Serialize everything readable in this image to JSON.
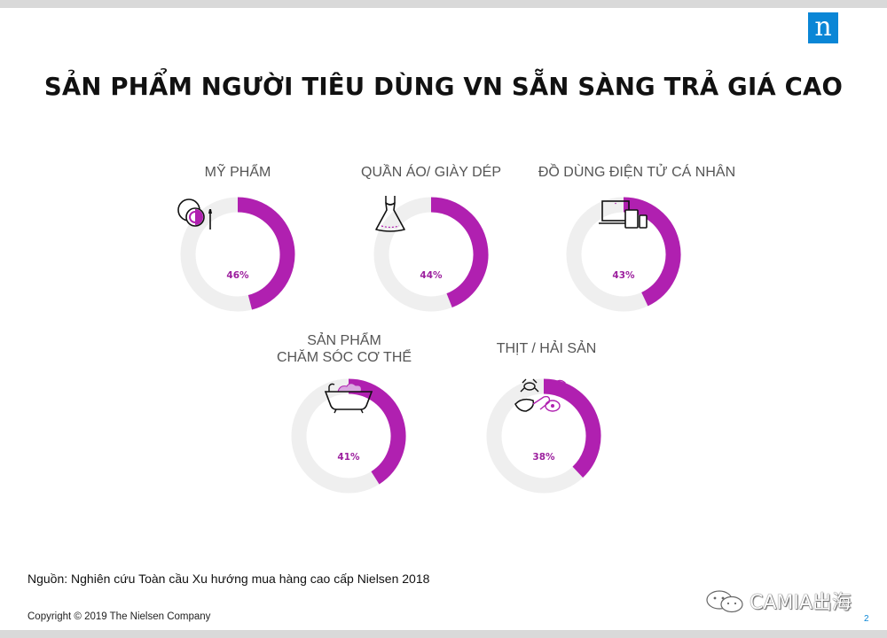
{
  "slide": {
    "title": "SẢN PHẨM NGƯỜI TIÊU DÙNG VN SẴN SÀNG TRẢ GIÁ CAO",
    "logo_letter": "n",
    "source": "Nguồn: Nghiên cứu Toàn cầu Xu hướng mua hàng cao cấp Nielsen 2018",
    "copyright": "Copyright © 2019  The Nielsen Company",
    "page_number": "2",
    "watermark": "CAMIA出海"
  },
  "colors": {
    "accent": "#b020b0",
    "track": "#efefef",
    "logo": "#0a86d6"
  },
  "chart_data": {
    "type": "pie",
    "title": "SẢN PHẨM NGƯỜI TIÊU DÙNG VN SẴN SÀNG TRẢ GIÁ CAO",
    "categories": [
      "MỸ PHẨM",
      "QUẦN ÁO/ GIÀY DÉP",
      "ĐỒ DÙNG ĐIỆN TỬ CÁ NHÂN",
      "SẢN PHẨM CHĂM SÓC CƠ THỂ",
      "THỊT / HẢI SẢN"
    ],
    "values": [
      46,
      44,
      43,
      41,
      38
    ],
    "unit": "%",
    "items": [
      {
        "label_lines": [
          "MỸ PHẨM"
        ],
        "value": 46,
        "value_label": "46%",
        "icon": "cosmetics-icon"
      },
      {
        "label_lines": [
          "QUẦN ÁO/ GIÀY DÉP"
        ],
        "value": 44,
        "value_label": "44%",
        "icon": "dress-icon"
      },
      {
        "label_lines": [
          "ĐỒ DÙNG ĐIỆN TỬ CÁ NHÂN"
        ],
        "value": 43,
        "value_label": "43%",
        "icon": "devices-icon"
      },
      {
        "label_lines": [
          "SẢN PHẨM",
          "CHĂM SÓC CƠ THỂ"
        ],
        "value": 41,
        "value_label": "41%",
        "icon": "bathtub-icon"
      },
      {
        "label_lines": [
          "THỊT / HẢI SẢN"
        ],
        "value": 38,
        "value_label": "38%",
        "icon": "meat-seafood-icon"
      }
    ]
  }
}
